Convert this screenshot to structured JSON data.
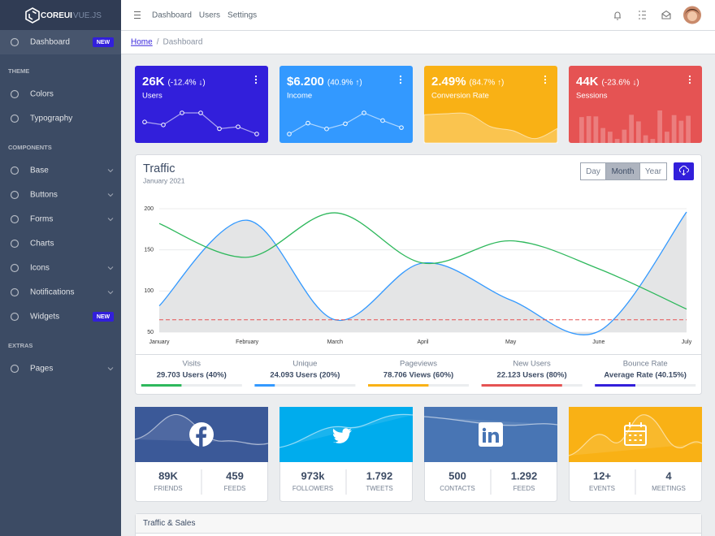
{
  "sidebar": {
    "brand": "COREUI",
    "brand_suffix": "VUE.JS",
    "sections": [
      {
        "items": [
          {
            "label": "Dashboard",
            "badge": "NEW",
            "active": true
          }
        ]
      },
      {
        "title": "THEME",
        "items": [
          {
            "label": "Colors"
          },
          {
            "label": "Typography"
          }
        ]
      },
      {
        "title": "COMPONENTS",
        "items": [
          {
            "label": "Base",
            "dropdown": true
          },
          {
            "label": "Buttons",
            "dropdown": true
          },
          {
            "label": "Forms",
            "dropdown": true
          },
          {
            "label": "Charts"
          },
          {
            "label": "Icons",
            "dropdown": true
          },
          {
            "label": "Notifications",
            "dropdown": true
          },
          {
            "label": "Widgets",
            "badge": "NEW"
          }
        ]
      },
      {
        "title": "EXTRAS",
        "items": [
          {
            "label": "Pages",
            "dropdown": true
          }
        ]
      }
    ]
  },
  "header": {
    "nav": [
      "Dashboard",
      "Users",
      "Settings"
    ]
  },
  "breadcrumb": {
    "items": [
      "Home",
      "Dashboard"
    ],
    "separator": "/"
  },
  "widgets": [
    {
      "value": "26K",
      "change": "(-12.4% ↓)",
      "label": "Users",
      "color": "#321fdb",
      "type": "line",
      "values": [
        65,
        59,
        84,
        84,
        51,
        55,
        40
      ]
    },
    {
      "value": "$6.200",
      "change": "(40.9% ↑)",
      "label": "Income",
      "color": "#3399ff",
      "type": "line",
      "values": [
        1,
        18,
        9,
        17,
        34,
        22,
        11
      ]
    },
    {
      "value": "2.49%",
      "change": "(84.7% ↑)",
      "label": "Conversion Rate",
      "color": "#f9b115",
      "type": "area",
      "values": [
        78,
        81,
        80,
        45,
        34,
        12,
        40
      ]
    },
    {
      "value": "44K",
      "change": "(-23.6% ↓)",
      "label": "Sessions",
      "color": "#e55353",
      "type": "bar",
      "values": [
        78,
        81,
        80,
        45,
        34,
        12,
        40,
        85,
        65,
        23,
        12,
        98,
        34,
        84,
        67,
        82
      ]
    }
  ],
  "traffic": {
    "title": "Traffic",
    "subtitle": "January 2021",
    "buttons": [
      "Day",
      "Month",
      "Year"
    ],
    "active": "Month",
    "chart_data": {
      "type": "line",
      "categories": [
        "January",
        "February",
        "March",
        "April",
        "May",
        "June",
        "July"
      ],
      "series": [
        {
          "color": "#3399ff",
          "area": "#e4e5e6",
          "values": [
            82,
            186,
            65,
            134,
            89,
            51,
            196
          ]
        },
        {
          "color": "#2eb85c",
          "values": [
            182,
            141,
            195,
            134,
            161,
            127,
            78
          ]
        },
        {
          "color": "#e55353",
          "dash": true,
          "values": [
            65,
            65,
            65,
            65,
            65,
            65,
            65
          ]
        }
      ],
      "ylim": [
        50,
        200
      ],
      "yticks": [
        50,
        100,
        150,
        200
      ],
      "grid": true
    },
    "stats": [
      {
        "label": "Visits",
        "value": "29.703 Users (40%)",
        "percent": 40,
        "color": "#2eb85c"
      },
      {
        "label": "Unique",
        "value": "24.093 Users (20%)",
        "percent": 20,
        "color": "#3399ff"
      },
      {
        "label": "Pageviews",
        "value": "78.706 Views (60%)",
        "percent": 60,
        "color": "#f9b115"
      },
      {
        "label": "New Users",
        "value": "22.123 Users (80%)",
        "percent": 80,
        "color": "#e55353"
      },
      {
        "label": "Bounce Rate",
        "value": "Average Rate (40.15%)",
        "percent": 40.15,
        "color": "#321fdb"
      }
    ]
  },
  "social": [
    {
      "icon": "facebook",
      "color": "#3b5998",
      "items": [
        {
          "value": "89K",
          "label": "FRIENDS"
        },
        {
          "value": "459",
          "label": "FEEDS"
        }
      ]
    },
    {
      "icon": "twitter",
      "color": "#00aced",
      "items": [
        {
          "value": "973k",
          "label": "FOLLOWERS"
        },
        {
          "value": "1.792",
          "label": "TWEETS"
        }
      ]
    },
    {
      "icon": "linkedin",
      "color": "#4875b4",
      "items": [
        {
          "value": "500",
          "label": "CONTACTS"
        },
        {
          "value": "1.292",
          "label": "FEEDS"
        }
      ]
    },
    {
      "icon": "calendar",
      "color": "#f9b115",
      "items": [
        {
          "value": "12+",
          "label": "EVENTS"
        },
        {
          "value": "4",
          "label": "MEETINGS"
        }
      ]
    }
  ],
  "bottom_card": {
    "title": "Traffic & Sales"
  }
}
